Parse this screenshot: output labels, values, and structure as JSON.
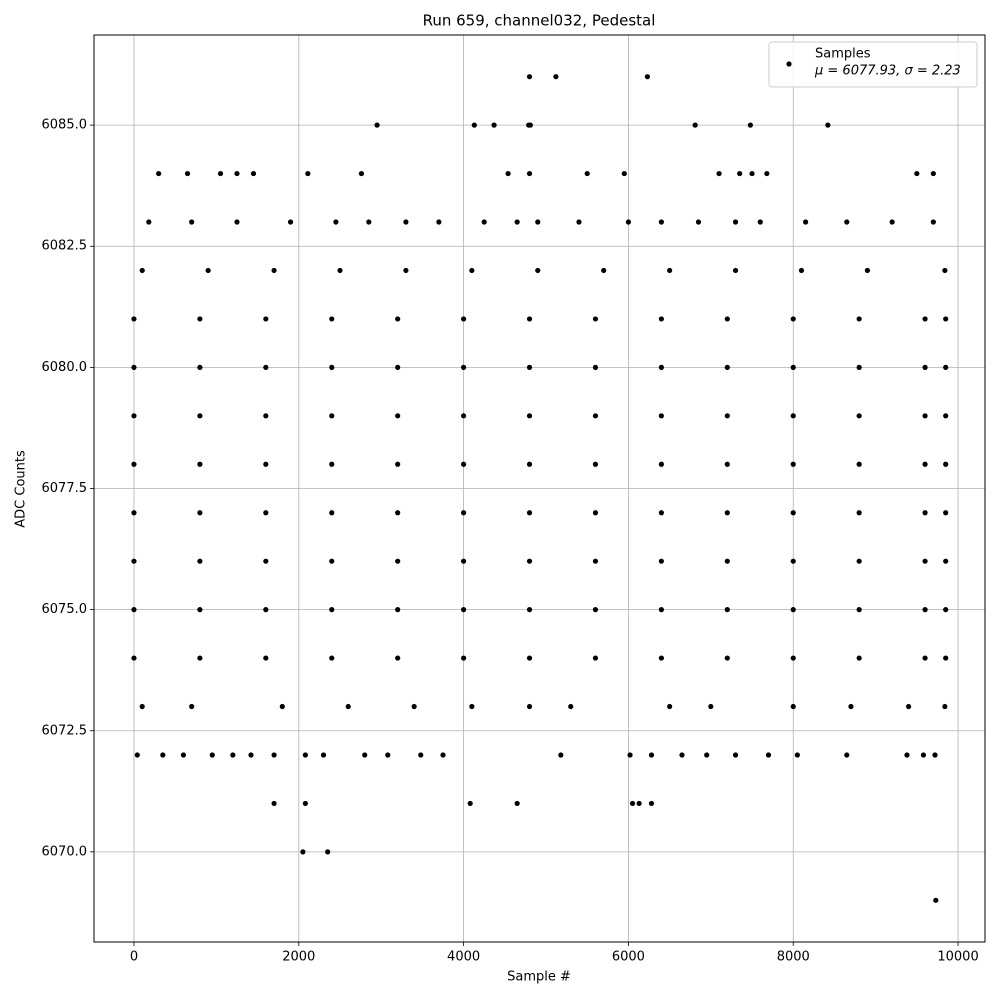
{
  "chart_data": {
    "type": "scatter",
    "title": "Run 659, channel032, Pedestal",
    "xlabel": "Sample #",
    "ylabel": "ADC Counts",
    "xlim": [
      -485,
      10327
    ],
    "ylim": [
      6068.14,
      6086.86
    ],
    "xticks": [
      0,
      2000,
      4000,
      6000,
      8000,
      10000
    ],
    "yticks": [
      {
        "value": 6070,
        "label": "6070.0"
      },
      {
        "value": 6072.5,
        "label": "6072.5"
      },
      {
        "value": 6075,
        "label": "6075.0"
      },
      {
        "value": 6077.5,
        "label": "6077.5"
      },
      {
        "value": 6080,
        "label": "6080.0"
      },
      {
        "value": 6082.5,
        "label": "6082.5"
      },
      {
        "value": 6085,
        "label": "6085.0"
      }
    ],
    "grid": true,
    "legend": "upper right",
    "stats_label": "μ = 6077.93, σ = 2.23",
    "series": [
      {
        "name": "Samples",
        "color": "#000000",
        "x": [
          4800,
          5120,
          6230,
          2950,
          4130,
          4370,
          4790,
          4810,
          6810,
          7480,
          8420,
          300,
          650,
          1050,
          1250,
          1450,
          2110,
          2760,
          4540,
          4800,
          5500,
          5950,
          7100,
          7350,
          7500,
          7680,
          9500,
          9700,
          180,
          700,
          1250,
          1900,
          2450,
          2850,
          3300,
          3700,
          4250,
          4650,
          4900,
          5400,
          6000,
          6400,
          6850,
          7300,
          7600,
          8150,
          8650,
          9200,
          9700,
          100,
          900,
          1700,
          2500,
          3300,
          4100,
          4900,
          5700,
          6500,
          7300,
          8100,
          8900,
          9840,
          0,
          800,
          1600,
          2400,
          3200,
          4000,
          4800,
          5600,
          6400,
          7200,
          8000,
          8800,
          9600,
          9850,
          0,
          800,
          1600,
          2400,
          3200,
          4000,
          4800,
          5600,
          6400,
          7200,
          8000,
          8800,
          9600,
          9850,
          0,
          800,
          1600,
          2400,
          3200,
          4000,
          4800,
          5600,
          6400,
          7200,
          8000,
          8800,
          9600,
          9850,
          0,
          800,
          1600,
          2400,
          3200,
          4000,
          4800,
          5600,
          6400,
          7200,
          8000,
          8800,
          9600,
          9850,
          0,
          800,
          1600,
          2400,
          3200,
          4000,
          4800,
          5600,
          6400,
          7200,
          8000,
          8800,
          9600,
          9850,
          0,
          800,
          1600,
          2400,
          3200,
          4000,
          4800,
          5600,
          6400,
          7200,
          8000,
          8800,
          9600,
          9850,
          0,
          800,
          1600,
          2400,
          3200,
          4000,
          4800,
          5600,
          6400,
          7200,
          8000,
          8800,
          9600,
          9850,
          0,
          800,
          1600,
          2400,
          3200,
          4000,
          4800,
          5600,
          6400,
          7200,
          8000,
          8800,
          9600,
          9850,
          100,
          700,
          1800,
          2600,
          3400,
          4100,
          4800,
          5300,
          6500,
          7000,
          8000,
          8700,
          9400,
          9840,
          40,
          350,
          600,
          950,
          1200,
          1420,
          1700,
          2080,
          2300,
          2800,
          3080,
          3480,
          3750,
          5180,
          6020,
          6280,
          6650,
          6950,
          7300,
          7700,
          8050,
          8650,
          9380,
          9580,
          9720,
          1700,
          2080,
          4080,
          4650,
          6050,
          6130,
          6280,
          2050,
          2350,
          9730
        ],
        "values": [
          6086,
          6086,
          6086,
          6085,
          6085,
          6085,
          6085,
          6085,
          6085,
          6085,
          6085,
          6084,
          6084,
          6084,
          6084,
          6084,
          6084,
          6084,
          6084,
          6084,
          6084,
          6084,
          6084,
          6084,
          6084,
          6084,
          6084,
          6084,
          6083,
          6083,
          6083,
          6083,
          6083,
          6083,
          6083,
          6083,
          6083,
          6083,
          6083,
          6083,
          6083,
          6083,
          6083,
          6083,
          6083,
          6083,
          6083,
          6083,
          6083,
          6082,
          6082,
          6082,
          6082,
          6082,
          6082,
          6082,
          6082,
          6082,
          6082,
          6082,
          6082,
          6082,
          6081,
          6081,
          6081,
          6081,
          6081,
          6081,
          6081,
          6081,
          6081,
          6081,
          6081,
          6081,
          6081,
          6081,
          6080,
          6080,
          6080,
          6080,
          6080,
          6080,
          6080,
          6080,
          6080,
          6080,
          6080,
          6080,
          6080,
          6080,
          6079,
          6079,
          6079,
          6079,
          6079,
          6079,
          6079,
          6079,
          6079,
          6079,
          6079,
          6079,
          6079,
          6079,
          6078,
          6078,
          6078,
          6078,
          6078,
          6078,
          6078,
          6078,
          6078,
          6078,
          6078,
          6078,
          6078,
          6078,
          6077,
          6077,
          6077,
          6077,
          6077,
          6077,
          6077,
          6077,
          6077,
          6077,
          6077,
          6077,
          6077,
          6077,
          6076,
          6076,
          6076,
          6076,
          6076,
          6076,
          6076,
          6076,
          6076,
          6076,
          6076,
          6076,
          6076,
          6076,
          6075,
          6075,
          6075,
          6075,
          6075,
          6075,
          6075,
          6075,
          6075,
          6075,
          6075,
          6075,
          6075,
          6075,
          6074,
          6074,
          6074,
          6074,
          6074,
          6074,
          6074,
          6074,
          6074,
          6074,
          6074,
          6074,
          6074,
          6074,
          6073,
          6073,
          6073,
          6073,
          6073,
          6073,
          6073,
          6073,
          6073,
          6073,
          6073,
          6073,
          6073,
          6073,
          6072,
          6072,
          6072,
          6072,
          6072,
          6072,
          6072,
          6072,
          6072,
          6072,
          6072,
          6072,
          6072,
          6072,
          6072,
          6072,
          6072,
          6072,
          6072,
          6072,
          6072,
          6072,
          6072,
          6072,
          6072,
          6071,
          6071,
          6071,
          6071,
          6071,
          6071,
          6071,
          6070,
          6070,
          6069
        ]
      }
    ]
  }
}
